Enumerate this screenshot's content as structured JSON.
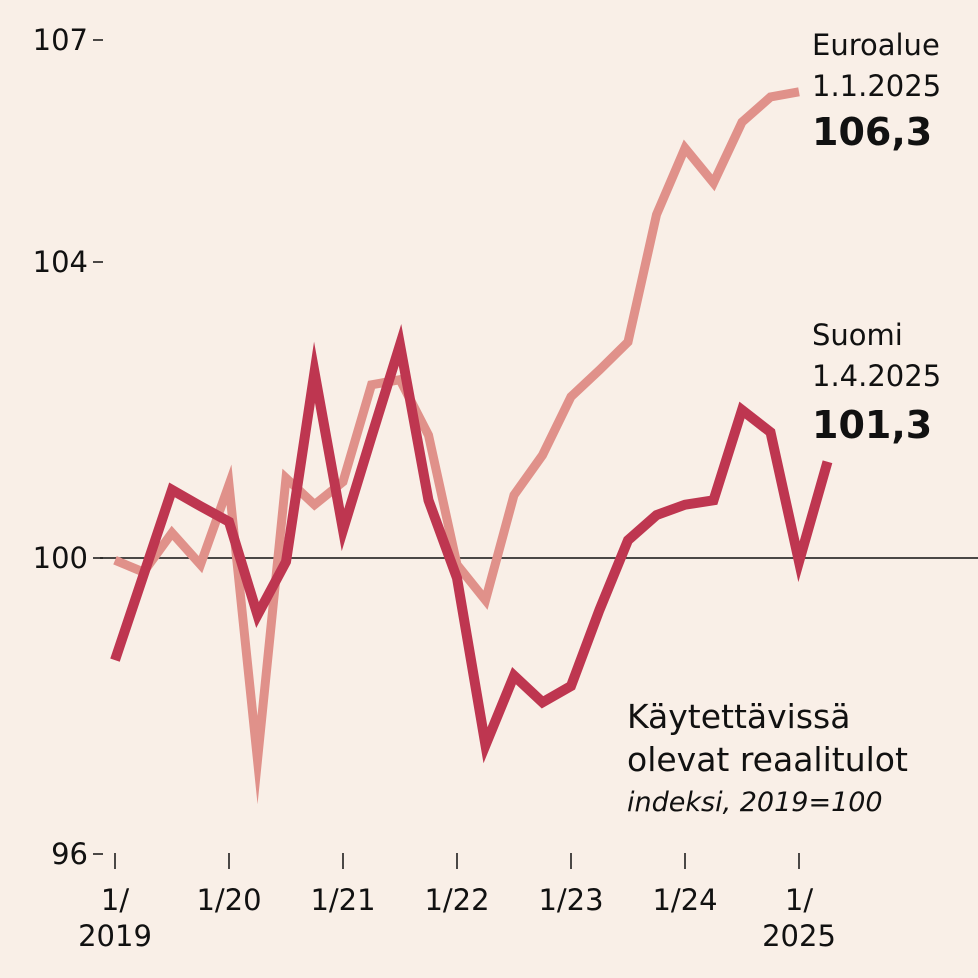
{
  "chart_data": {
    "type": "line",
    "title": "Käytettävissä olevat reaalitulot",
    "subtitle": "indeksi, 2019=100",
    "ylim": [
      96,
      107
    ],
    "yticks": [
      96,
      100,
      104,
      107
    ],
    "ytick_labels": [
      "96",
      "100",
      "104",
      "107"
    ],
    "xticks": [
      {
        "label1": "1/",
        "label2": "2019",
        "q": 0
      },
      {
        "label1": "1/20",
        "label2": "",
        "q": 4
      },
      {
        "label1": "1/21",
        "label2": "",
        "q": 8
      },
      {
        "label1": "1/22",
        "label2": "",
        "q": 12
      },
      {
        "label1": "1/23",
        "label2": "",
        "q": 16
      },
      {
        "label1": "1/24",
        "label2": "",
        "q": 20
      },
      {
        "label1": "1/",
        "label2": "2025",
        "q": 24
      }
    ],
    "x_unit": "quarter index from 1/2019",
    "reference_line": 100,
    "series": [
      {
        "name": "Euroalue",
        "date_label": "1.1.2025",
        "value_label": "106,3",
        "color": "#e0918a",
        "values": [
          99.97,
          99.81,
          100.34,
          99.91,
          100.99,
          97.27,
          101.08,
          100.72,
          101.03,
          102.34,
          102.41,
          101.66,
          99.91,
          99.43,
          100.85,
          101.39,
          102.18,
          102.54,
          102.92,
          104.64,
          105.54,
          105.07,
          105.89,
          106.23,
          106.3
        ]
      },
      {
        "name": "Suomi",
        "date_label": "1.4.2025",
        "value_label": "101,3",
        "color": "#be3650",
        "values": [
          98.62,
          99.77,
          100.92,
          100.7,
          100.49,
          99.23,
          99.95,
          102.51,
          100.38,
          101.64,
          102.88,
          100.78,
          99.73,
          97.47,
          98.41,
          98.05,
          98.27,
          99.3,
          100.24,
          100.58,
          100.72,
          100.78,
          102.0,
          101.7,
          99.95,
          101.3
        ]
      }
    ]
  }
}
